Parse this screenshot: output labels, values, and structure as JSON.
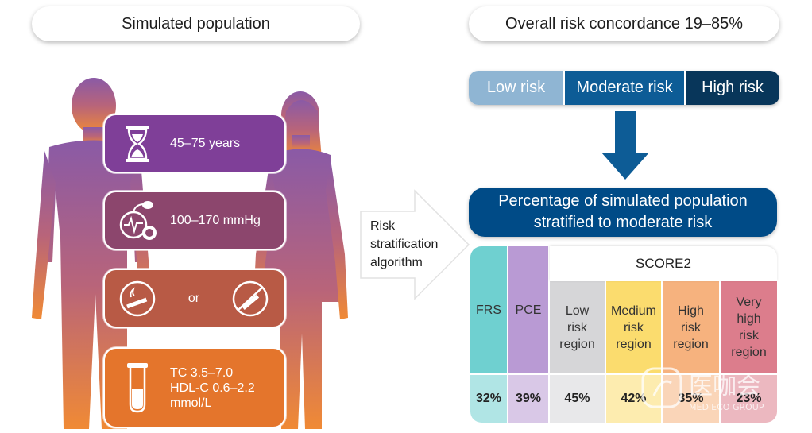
{
  "header": {
    "left_title": "Simulated population",
    "right_title": "Overall risk concordance 19–85%"
  },
  "risk_factors": {
    "age": "45–75 years",
    "bp": "100–170 mmHg",
    "smoking_or": "or",
    "chol_line1": "TC 3.5–7.0",
    "chol_line2": "HDL-C 0.6–2.2",
    "chol_line3": "mmol/L"
  },
  "algorithm": {
    "line1": "Risk",
    "line2": "stratification",
    "line3": "algorithm"
  },
  "risk_levels": {
    "low": "Low risk",
    "moderate": "Moderate risk",
    "high": "High risk"
  },
  "result_title": {
    "line1": "Percentage of simulated population",
    "line2": "stratified to moderate risk"
  },
  "table": {
    "score2_label": "SCORE2",
    "columns": [
      {
        "label_lines": [
          "FRS"
        ],
        "value": "32%",
        "color": "#6fd0d0"
      },
      {
        "label_lines": [
          "PCE"
        ],
        "value": "39%",
        "color": "#b99ad4"
      },
      {
        "label_lines": [
          "Low",
          "risk",
          "region"
        ],
        "value": "45%",
        "color": "#d6d6d8"
      },
      {
        "label_lines": [
          "Medium",
          "risk",
          "region"
        ],
        "value": "42%",
        "color": "#fbdc6e"
      },
      {
        "label_lines": [
          "High",
          "risk",
          "region"
        ],
        "value": "35%",
        "color": "#f6b27e"
      },
      {
        "label_lines": [
          "Very",
          "high",
          "risk",
          "region"
        ],
        "value": "23%",
        "color": "#dc7d8c"
      }
    ]
  },
  "watermark": {
    "brand": "医咖会",
    "sub": "MEDIECO GROUP"
  },
  "colors": {
    "navy": "#004b87",
    "purple": "#7f3f98",
    "orange": "#e4752c"
  }
}
